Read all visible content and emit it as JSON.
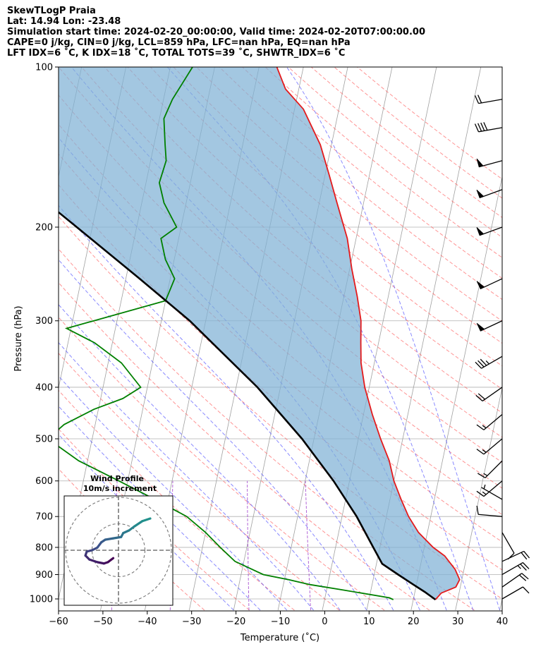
{
  "header": {
    "line1": "SkewTLogP Praia",
    "line2": "Lat: 14.94   Lon: -23.48",
    "line3": "Simulation start time: 2024-02-20_00:00:00, Valid time: 2024-02-20T07:00:00.00",
    "line4": "CAPE=0 j/kg, CIN=0 j/kg, LCL=859 hPa, LFC=nan hPa, EQ=nan hPa",
    "line5": "LFT IDX=6 ˚C, K IDX=18 ˚C, TOTAL TOTS=39 ˚C, SHWTR_IDX=6 ˚C"
  },
  "chart_data": {
    "type": "skew-t",
    "xlabel": "Temperature (˚C)",
    "ylabel": "Pressure (hPa)",
    "xlim": [
      -60,
      40
    ],
    "ylim": [
      1050,
      100
    ],
    "x_ticks": [
      -60,
      -50,
      -40,
      -30,
      -20,
      -10,
      0,
      10,
      20,
      30,
      40
    ],
    "x_tick_labels": [
      "−60",
      "−50",
      "−40",
      "−30",
      "−20",
      "−10",
      "0",
      "10",
      "20",
      "30",
      "40"
    ],
    "y_ticks": [
      1000,
      900,
      800,
      700,
      600,
      500,
      400,
      300,
      200,
      100
    ],
    "y_tick_labels": [
      "1000",
      "900",
      "800",
      "700",
      "600",
      "500",
      "400",
      "300",
      "200",
      "100"
    ],
    "skew_deg_per_decade": 25.2,
    "grid": true,
    "colors": {
      "temperature": "#e41a1c",
      "dewpoint": "#008000",
      "parcel": "#000000",
      "cape_fill": "#7fb2d5",
      "dry_adiabat": "#ff4d4d",
      "moist_adiabat": "#3b3bff",
      "mixing_ratio": "#9a34c9",
      "isotherm": "#a0a0a0"
    },
    "series": [
      {
        "role": "temperature",
        "points": [
          [
            1003,
            25
          ],
          [
            975,
            26
          ],
          [
            950,
            29
          ],
          [
            920,
            29.5
          ],
          [
            880,
            28
          ],
          [
            830,
            25
          ],
          [
            800,
            22
          ],
          [
            750,
            18
          ],
          [
            700,
            15
          ],
          [
            650,
            12.5
          ],
          [
            600,
            10
          ],
          [
            550,
            8
          ],
          [
            500,
            5
          ],
          [
            450,
            2
          ],
          [
            400,
            -1
          ],
          [
            360,
            -3
          ],
          [
            330,
            -4
          ],
          [
            300,
            -5
          ],
          [
            270,
            -7
          ],
          [
            240,
            -9.5
          ],
          [
            210,
            -12
          ],
          [
            180,
            -16
          ],
          [
            160,
            -19
          ],
          [
            140,
            -22.5
          ],
          [
            120,
            -28
          ],
          [
            110,
            -33
          ],
          [
            100,
            -36
          ]
        ]
      },
      {
        "role": "dewpoint",
        "points": [
          [
            1003,
            15.5
          ],
          [
            995,
            14.5
          ],
          [
            960,
            3
          ],
          [
            940,
            -4
          ],
          [
            920,
            -9
          ],
          [
            900,
            -15
          ],
          [
            850,
            -22
          ],
          [
            800,
            -26
          ],
          [
            750,
            -30
          ],
          [
            700,
            -35
          ],
          [
            650,
            -43
          ],
          [
            600,
            -52
          ],
          [
            550,
            -62
          ],
          [
            500,
            -70
          ],
          [
            470,
            -67
          ],
          [
            440,
            -61
          ],
          [
            420,
            -55
          ],
          [
            400,
            -51.5
          ],
          [
            360,
            -57
          ],
          [
            330,
            -64
          ],
          [
            310,
            -71
          ],
          [
            275,
            -50
          ],
          [
            250,
            -49
          ],
          [
            230,
            -52
          ],
          [
            210,
            -54
          ],
          [
            200,
            -51
          ],
          [
            180,
            -55
          ],
          [
            165,
            -57
          ],
          [
            150,
            -56.5
          ],
          [
            140,
            -57.5
          ],
          [
            125,
            -59
          ],
          [
            115,
            -58
          ],
          [
            100,
            -55
          ]
        ]
      },
      {
        "role": "parcel",
        "points": [
          [
            1003,
            25
          ],
          [
            970,
            22.2
          ],
          [
            940,
            19.3
          ],
          [
            900,
            15.4
          ],
          [
            859,
            11.3
          ],
          [
            800,
            8.5
          ],
          [
            700,
            3.3
          ],
          [
            600,
            -3.6
          ],
          [
            500,
            -12.7
          ],
          [
            400,
            -25.2
          ],
          [
            300,
            -43.6
          ],
          [
            250,
            -56.9
          ],
          [
            200,
            -73.5
          ],
          [
            150,
            -95
          ],
          [
            100,
            -125
          ]
        ]
      }
    ],
    "wind_barbs": [
      {
        "pressure": 1000,
        "speed_kt": 10,
        "direction_deg": 60
      },
      {
        "pressure": 950,
        "speed_kt": 20,
        "direction_deg": 55
      },
      {
        "pressure": 900,
        "speed_kt": 25,
        "direction_deg": 60
      },
      {
        "pressure": 850,
        "speed_kt": 20,
        "direction_deg": 65
      },
      {
        "pressure": 750,
        "speed_kt": 10,
        "direction_deg": 150
      },
      {
        "pressure": 700,
        "speed_kt": 10,
        "direction_deg": 275
      },
      {
        "pressure": 650,
        "speed_kt": 5,
        "direction_deg": 300
      },
      {
        "pressure": 600,
        "speed_kt": 15,
        "direction_deg": 230
      },
      {
        "pressure": 550,
        "speed_kt": 15,
        "direction_deg": 225
      },
      {
        "pressure": 500,
        "speed_kt": 15,
        "direction_deg": 230
      },
      {
        "pressure": 450,
        "speed_kt": 15,
        "direction_deg": 230
      },
      {
        "pressure": 400,
        "speed_kt": 20,
        "direction_deg": 235
      },
      {
        "pressure": 350,
        "speed_kt": 35,
        "direction_deg": 240
      },
      {
        "pressure": 300,
        "speed_kt": 50,
        "direction_deg": 245
      },
      {
        "pressure": 250,
        "speed_kt": 50,
        "direction_deg": 245
      },
      {
        "pressure": 200,
        "speed_kt": 50,
        "direction_deg": 250
      },
      {
        "pressure": 170,
        "speed_kt": 50,
        "direction_deg": 250
      },
      {
        "pressure": 150,
        "speed_kt": 50,
        "direction_deg": 255
      },
      {
        "pressure": 130,
        "speed_kt": 40,
        "direction_deg": 260
      },
      {
        "pressure": 115,
        "speed_kt": 20,
        "direction_deg": 260
      }
    ],
    "inset": {
      "title_line1": "Wind Profile",
      "title_line2": "10m/s increment",
      "type": "hodograph",
      "points": [
        [
          -2,
          -3
        ],
        [
          -4,
          -4.5
        ],
        [
          -5.5,
          -5
        ],
        [
          -8,
          -4.5
        ],
        [
          -11,
          -3.5
        ],
        [
          -12.5,
          -2
        ],
        [
          -12,
          -0.5
        ],
        [
          -10,
          0
        ],
        [
          -8,
          1
        ],
        [
          -6.5,
          3
        ],
        [
          -5,
          4
        ],
        [
          -2,
          4.5
        ],
        [
          1,
          5
        ],
        [
          1.8,
          6.5
        ],
        [
          4,
          7.5
        ],
        [
          6,
          9
        ],
        [
          9,
          11
        ],
        [
          12,
          12
        ]
      ]
    }
  }
}
